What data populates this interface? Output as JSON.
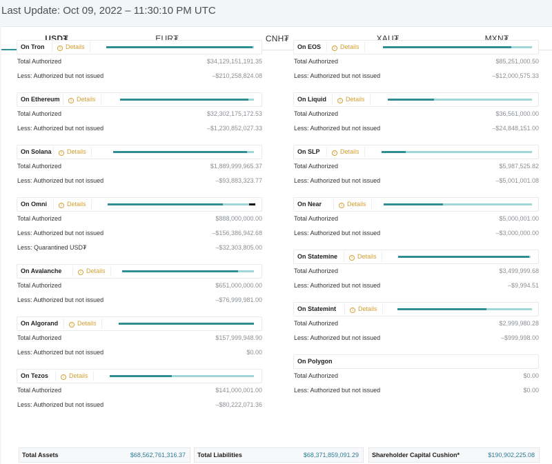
{
  "last_update": "Last Update: Oct 09, 2022 – 11:30:10 PM UTC",
  "tabs": [
    {
      "label": "USD₮",
      "active": true
    },
    {
      "label": "EUR₮",
      "active": false
    },
    {
      "label": "CNH₮",
      "active": false
    },
    {
      "label": "XAU₮",
      "active": false
    },
    {
      "label": "MXN₮",
      "active": false
    }
  ],
  "details_label": "Details",
  "colors": {
    "accent": "#2e9196",
    "bar_dark": "#2e8e93",
    "bar_light": "#9fd7d9",
    "details": "#d2a033"
  },
  "left_chains": [
    {
      "name": "On Tron",
      "bar": [
        0.99,
        0.01,
        0
      ],
      "rows": [
        {
          "label": "Total Authorized",
          "value": "$34,129,151,191.35"
        },
        {
          "label": "Less: Authorized but not issued",
          "value": "–$210,258,824.08"
        }
      ]
    },
    {
      "name": "On Ethereum",
      "bar": [
        0.96,
        0.04,
        0
      ],
      "rows": [
        {
          "label": "Total Authorized",
          "value": "$32,302,175,172.53"
        },
        {
          "label": "Less: Authorized but not issued",
          "value": "–$1,230,852,027.33"
        }
      ]
    },
    {
      "name": "On Solana",
      "bar": [
        0.95,
        0.05,
        0
      ],
      "rows": [
        {
          "label": "Total Authorized",
          "value": "$1,889,999,965.37"
        },
        {
          "label": "Less: Authorized but not issued",
          "value": "–$93,883,323.77"
        }
      ]
    },
    {
      "name": "On Omni",
      "bar": [
        0.78,
        0.18,
        0.04
      ],
      "rows": [
        {
          "label": "Total Authorized",
          "value": "$888,000,000.00"
        },
        {
          "label": "Less: Authorized but not issued",
          "value": "–$156,386,942.68"
        },
        {
          "label": "Less: Quarantined USD₮",
          "value": "–$32,303,805.00"
        }
      ]
    },
    {
      "name": "On Avalanche",
      "bar": [
        0.88,
        0.12,
        0
      ],
      "rows": [
        {
          "label": "Total Authorized",
          "value": "$651,000,000.00"
        },
        {
          "label": "Less: Authorized but not issued",
          "value": "–$76,999,981.00"
        }
      ]
    },
    {
      "name": "On Algorand",
      "bar": [
        1.0,
        0,
        0
      ],
      "rows": [
        {
          "label": "Total Authorized",
          "value": "$157,999,948.90"
        },
        {
          "label": "Less: Authorized but not issued",
          "value": "$0.00"
        }
      ]
    },
    {
      "name": "On Tezos",
      "bar": [
        0.43,
        0.57,
        0
      ],
      "rows": [
        {
          "label": "Total Authorized",
          "value": "$141,000,001.00"
        },
        {
          "label": "Less: Authorized but not issued",
          "value": "–$80,222,071.36"
        }
      ]
    }
  ],
  "right_chains": [
    {
      "name": "On EOS",
      "bar": [
        0.86,
        0.14,
        0
      ],
      "rows": [
        {
          "label": "Total Authorized",
          "value": "$85,251,000.50"
        },
        {
          "label": "Less: Authorized but not issued",
          "value": "–$12,000,575.33"
        }
      ]
    },
    {
      "name": "On Liquid",
      "bar": [
        0.32,
        0.68,
        0
      ],
      "rows": [
        {
          "label": "Total Authorized",
          "value": "$36,561,000.00"
        },
        {
          "label": "Less: Authorized but not issued",
          "value": "–$24,848,151.00"
        }
      ]
    },
    {
      "name": "On SLP",
      "bar": [
        0.16,
        0.84,
        0
      ],
      "rows": [
        {
          "label": "Total Authorized",
          "value": "$5,987,525.82"
        },
        {
          "label": "Less: Authorized but not issued",
          "value": "–$5,001,001.08"
        }
      ]
    },
    {
      "name": "On Near",
      "bar": [
        0.4,
        0.6,
        0
      ],
      "rows": [
        {
          "label": "Total Authorized",
          "value": "$5,000,001.00"
        },
        {
          "label": "Less: Authorized but not issued",
          "value": "–$3,000,000.00"
        }
      ]
    },
    {
      "name": "On Statemine",
      "bar": [
        0.99,
        0.01,
        0
      ],
      "rows": [
        {
          "label": "Total Authorized",
          "value": "$3,499,999.68"
        },
        {
          "label": "Less: Authorized but not issued",
          "value": "–$9,994.51"
        }
      ]
    },
    {
      "name": "On Statemint",
      "bar": [
        0.66,
        0.34,
        0
      ],
      "rows": [
        {
          "label": "Total Authorized",
          "value": "$2,999,980.28"
        },
        {
          "label": "Less: Authorized but not issued",
          "value": "–$999,998.00"
        }
      ]
    },
    {
      "name": "On Polygon",
      "bar": null,
      "rows": [
        {
          "label": "Total Authorized",
          "value": "$0.00"
        },
        {
          "label": "Less: Authorized but not issued",
          "value": "$0.00"
        }
      ]
    }
  ],
  "totals": [
    {
      "label": "Total Assets",
      "value": "$68,562,761,316.37"
    },
    {
      "label": "Total Liabilities",
      "value": "$68,371,859,091.29"
    },
    {
      "label": "Shareholder Capital Cushion*",
      "value": "$190,902,225.08"
    }
  ]
}
